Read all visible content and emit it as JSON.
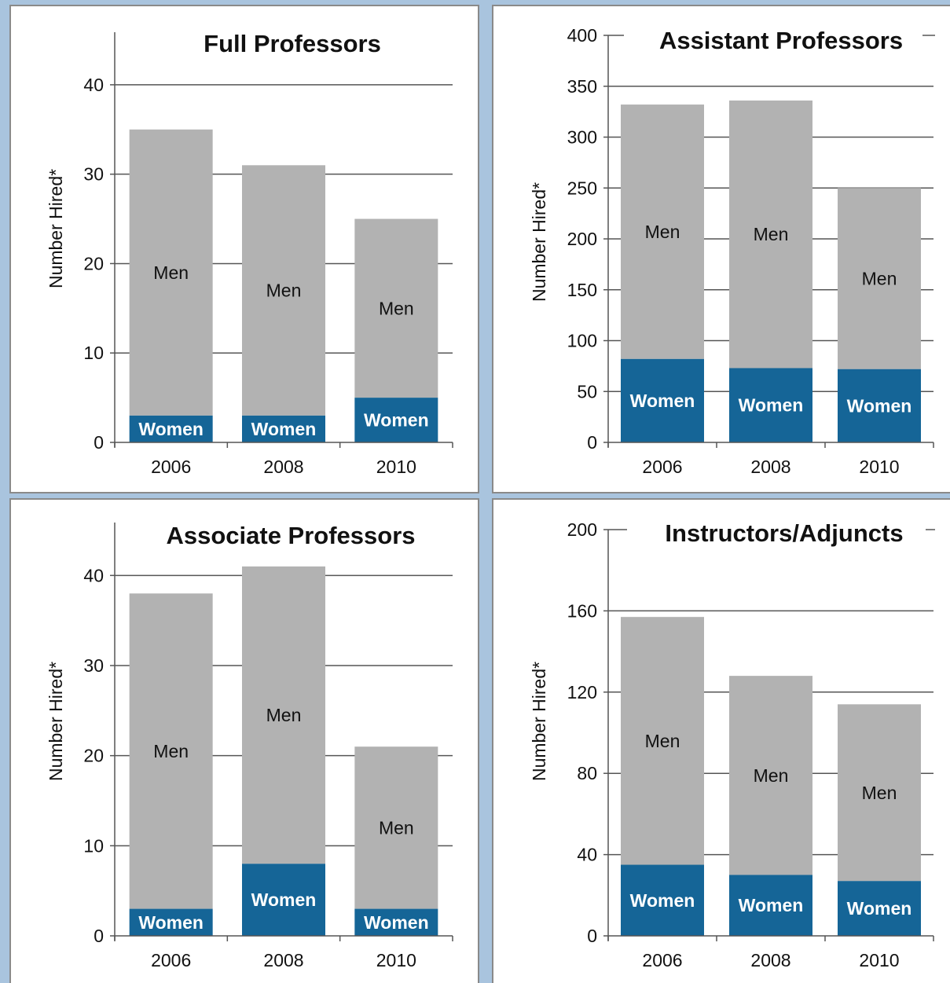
{
  "colors": {
    "men": "#b2b2b2",
    "women": "#156597",
    "grid": "#555555"
  },
  "chart_data": [
    {
      "type": "bar",
      "stacked": true,
      "title": "Full Professors",
      "ylabel": "Number Hired*",
      "categories": [
        "2006",
        "2008",
        "2010"
      ],
      "ylim": [
        0,
        45
      ],
      "yticks": [
        0,
        10,
        20,
        30,
        40
      ],
      "series": [
        {
          "name": "Women",
          "values": [
            3,
            3,
            5
          ]
        },
        {
          "name": "Men",
          "values": [
            32,
            28,
            20
          ]
        }
      ]
    },
    {
      "type": "bar",
      "stacked": true,
      "title": "Assistant Professors",
      "ylabel": "Number Hired*",
      "categories": [
        "2006",
        "2008",
        "2010"
      ],
      "ylim": [
        0,
        400
      ],
      "yticks": [
        0,
        50,
        100,
        150,
        200,
        250,
        300,
        350,
        400
      ],
      "series": [
        {
          "name": "Women",
          "values": [
            82,
            73,
            72
          ]
        },
        {
          "name": "Men",
          "values": [
            250,
            263,
            178
          ]
        }
      ]
    },
    {
      "type": "bar",
      "stacked": true,
      "title": "Associate Professors",
      "ylabel": "Number Hired*",
      "categories": [
        "2006",
        "2008",
        "2010"
      ],
      "ylim": [
        0,
        45
      ],
      "yticks": [
        0,
        10,
        20,
        30,
        40
      ],
      "series": [
        {
          "name": "Women",
          "values": [
            3,
            8,
            3
          ]
        },
        {
          "name": "Men",
          "values": [
            35,
            33,
            18
          ]
        }
      ]
    },
    {
      "type": "bar",
      "stacked": true,
      "title": "Instructors/Adjuncts",
      "ylabel": "Number Hired*",
      "categories": [
        "2006",
        "2008",
        "2010"
      ],
      "ylim": [
        0,
        200
      ],
      "yticks": [
        0,
        40,
        80,
        120,
        160,
        200
      ],
      "series": [
        {
          "name": "Women",
          "values": [
            35,
            30,
            27
          ]
        },
        {
          "name": "Men",
          "values": [
            122,
            98,
            87
          ]
        }
      ]
    }
  ]
}
